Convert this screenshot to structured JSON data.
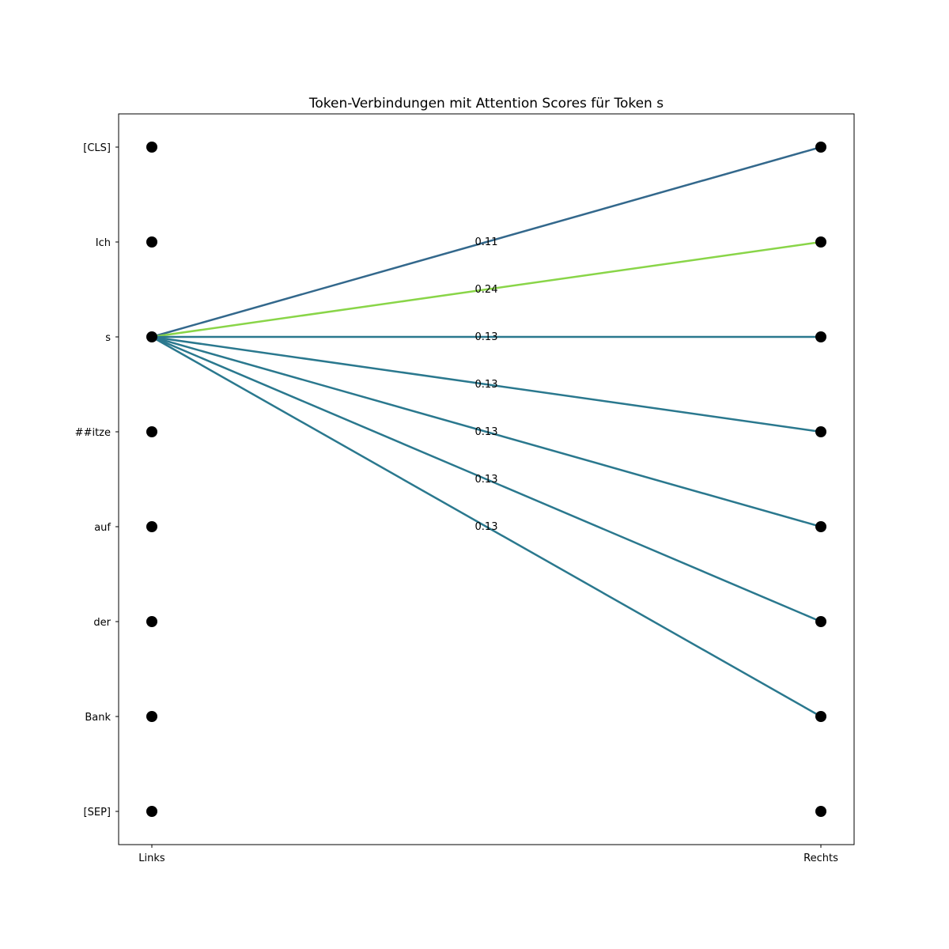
{
  "chart_data": {
    "type": "line",
    "title": "Token-Verbindungen mit Attention Scores für Token s",
    "xlabel": "",
    "ylabel": "",
    "x_ticks": [
      "Links",
      "Rechts"
    ],
    "tokens": [
      "[CLS]",
      "Ich",
      "s",
      "##itze",
      "auf",
      "der",
      "Bank",
      "[SEP]"
    ],
    "source_token": "s",
    "connections": [
      {
        "target": "[CLS]",
        "score": 0.11,
        "label": "0.11",
        "color": "#33688c"
      },
      {
        "target": "Ich",
        "score": 0.24,
        "label": "0.24",
        "color": "#89d548"
      },
      {
        "target": "s",
        "score": 0.13,
        "label": "0.13",
        "color": "#2a788e"
      },
      {
        "target": "##itze",
        "score": 0.13,
        "label": "0.13",
        "color": "#2a788e"
      },
      {
        "target": "auf",
        "score": 0.13,
        "label": "0.13",
        "color": "#2a788e"
      },
      {
        "target": "der",
        "score": 0.13,
        "label": "0.13",
        "color": "#2a788e"
      },
      {
        "target": "Bank",
        "score": 0.13,
        "label": "0.13",
        "color": "#2a788e"
      }
    ],
    "grid": false,
    "legend": "none"
  }
}
